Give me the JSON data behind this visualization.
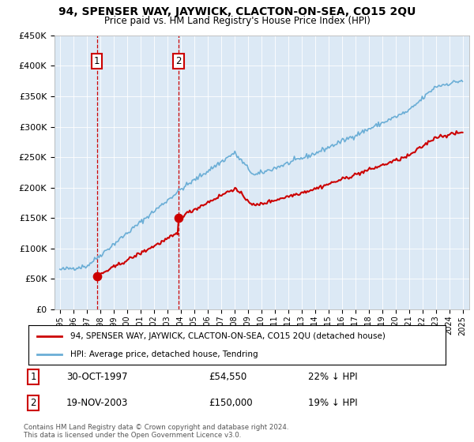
{
  "title": "94, SPENSER WAY, JAYWICK, CLACTON-ON-SEA, CO15 2QU",
  "subtitle": "Price paid vs. HM Land Registry's House Price Index (HPI)",
  "hpi_color": "#6baed6",
  "price_color": "#cc0000",
  "marker_color": "#cc0000",
  "background_color": "#ffffff",
  "plot_bg_color": "#dce9f5",
  "grid_color": "#ffffff",
  "purchase1_date": "30-OCT-1997",
  "purchase1_price": 54550,
  "purchase2_date": "19-NOV-2003",
  "purchase2_price": 150000,
  "purchase1_hpi_pct": "22% ↓ HPI",
  "purchase2_hpi_pct": "19% ↓ HPI",
  "legend_line1": "94, SPENSER WAY, JAYWICK, CLACTON-ON-SEA, CO15 2QU (detached house)",
  "legend_line2": "HPI: Average price, detached house, Tendring",
  "footnote": "Contains HM Land Registry data © Crown copyright and database right 2024.\nThis data is licensed under the Open Government Licence v3.0.",
  "ylim": [
    0,
    450000
  ],
  "year_start": 1995,
  "year_end": 2025
}
